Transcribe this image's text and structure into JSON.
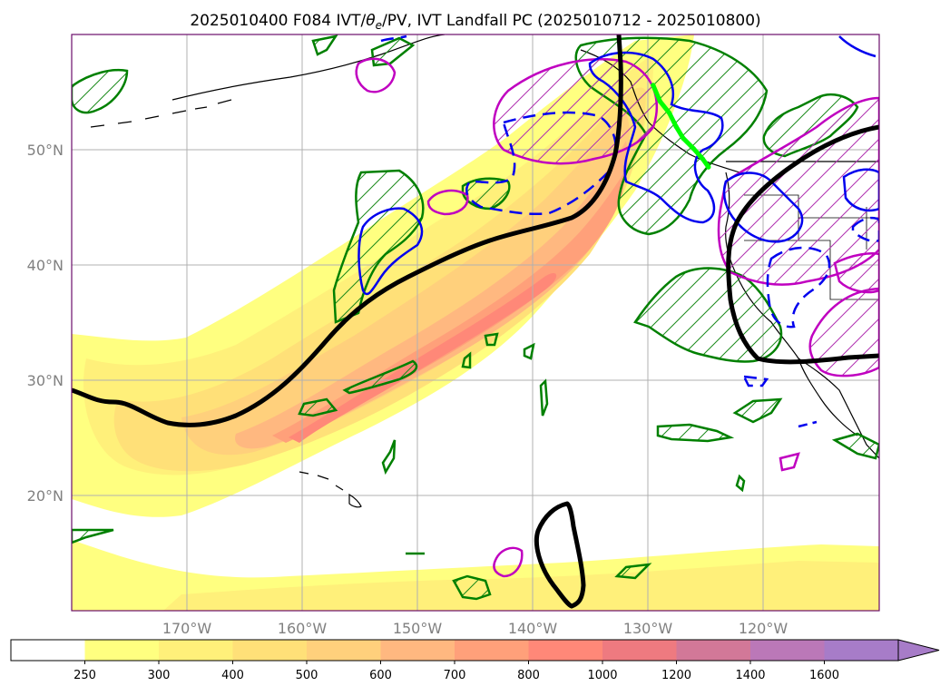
{
  "chart_data": {
    "type": "map",
    "title": "2025010400 F084 IVT/θe/PV, IVT Landfall PC (2025010712 - 2025010800)",
    "title_parts": {
      "prefix": "2025010400 F084 IVT/",
      "theta": "θ",
      "theta_sub": "e",
      "suffix": "/PV, IVT Landfall PC (2025010712 - 2025010800)"
    },
    "lon_range": [
      -180,
      -110
    ],
    "lat_range": [
      10,
      60
    ],
    "lon_ticks": [
      {
        "value": -170,
        "label": "170°W"
      },
      {
        "value": -160,
        "label": "160°W"
      },
      {
        "value": -150,
        "label": "150°W"
      },
      {
        "value": -140,
        "label": "140°W"
      },
      {
        "value": -130,
        "label": "130°W"
      },
      {
        "value": -120,
        "label": "120°W"
      }
    ],
    "lat_ticks": [
      {
        "value": 20,
        "label": "20°N"
      },
      {
        "value": 30,
        "label": "30°N"
      },
      {
        "value": 40,
        "label": "40°N"
      },
      {
        "value": 50,
        "label": "50°N"
      }
    ],
    "grid": true,
    "ivt_levels": [
      250,
      300,
      400,
      500,
      600,
      700,
      800,
      1000,
      1200,
      1400,
      1600
    ],
    "ivt_colors": [
      "#ffffff",
      "#ffff80",
      "#fff07a",
      "#ffe078",
      "#ffd07c",
      "#ffb880",
      "#ffa07a",
      "#ff8878",
      "#ee7a80",
      "#d27898",
      "#bb78b8",
      "#a77cc8"
    ],
    "colorbar_extend": "max",
    "landfall_points": [
      [
        -129.6,
        55.6
      ],
      [
        -129.0,
        54.2
      ],
      [
        -128.2,
        53.2
      ],
      [
        -127.6,
        52.0
      ],
      [
        -127.0,
        51.0
      ],
      [
        -126.1,
        50.1
      ],
      [
        -125.3,
        49.2
      ],
      [
        -124.8,
        48.5
      ]
    ],
    "landfall_color": "#00ff00",
    "ar_axis_color": "#000000",
    "pv_color": "#0000ff",
    "theta_e_color": "#cc00cc",
    "hatch_color": "#008000"
  }
}
